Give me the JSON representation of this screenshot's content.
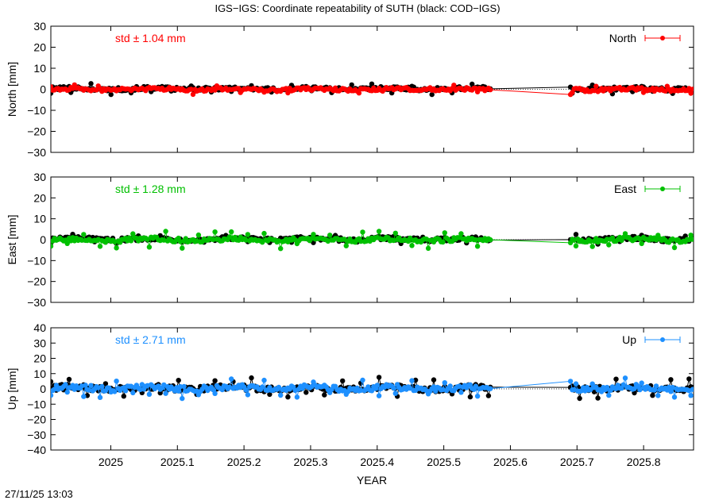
{
  "figure": {
    "title": "IGS−IGS: Coordinate repeatability of SUTH (black: COD−IGS)",
    "timestamp": "27/11/25 13:03",
    "xlabel": "YEAR"
  },
  "chart_data": [
    {
      "type": "scatter",
      "ylabel": "North [mm]",
      "ylim": [
        -30,
        30
      ],
      "yticks": [
        -30,
        -20,
        -10,
        0,
        10,
        20,
        30
      ],
      "ytick_labels": [
        "−30",
        "−20",
        "−10",
        "0",
        "10",
        "20",
        "30"
      ],
      "xlim": [
        2024.91,
        2025.875
      ],
      "xticks": [
        2025,
        2025.1,
        2025.2,
        2025.3,
        2025.4,
        2025.5,
        2025.6,
        2025.7,
        2025.8
      ],
      "xtick_labels": [
        "2025",
        "2025.1",
        "2025.2",
        "2025.3",
        "2025.4",
        "2025.5",
        "2025.6",
        "2025.7",
        "2025.8"
      ],
      "std_label": "std ± 1.04 mm",
      "legend": "North",
      "legend_position": "top-right",
      "color": "#ff0000",
      "gap": [
        2025.57,
        2025.69
      ],
      "black_series": {
        "y0": 0.3,
        "amp": 1.4,
        "spike_every": 11,
        "spike": 1.8
      },
      "color_series": {
        "y0": -0.1,
        "amp": 1.2,
        "spike_every": 13,
        "spike": 1.4,
        "gap_end_value": -2.5
      }
    },
    {
      "type": "scatter",
      "ylabel": "East [mm]",
      "ylim": [
        -30,
        30
      ],
      "yticks": [
        -30,
        -20,
        -10,
        0,
        10,
        20,
        30
      ],
      "ytick_labels": [
        "−30",
        "−20",
        "−10",
        "0",
        "10",
        "20",
        "30"
      ],
      "xlim": [
        2024.91,
        2025.875
      ],
      "xticks": [
        2025,
        2025.1,
        2025.2,
        2025.3,
        2025.4,
        2025.5,
        2025.6,
        2025.7,
        2025.8
      ],
      "xtick_labels": [
        "2025",
        "2025.1",
        "2025.2",
        "2025.3",
        "2025.4",
        "2025.5",
        "2025.6",
        "2025.7",
        "2025.8"
      ],
      "std_label": "std ± 1.28 mm",
      "legend": "East",
      "legend_position": "top-right",
      "color": "#00c000",
      "gap": [
        2025.57,
        2025.69
      ],
      "black_series": {
        "y0": 0.3,
        "amp": 1.5,
        "spike_every": 12,
        "spike": 1.6
      },
      "color_series": {
        "y0": 0.0,
        "amp": 1.6,
        "spike_every": 9,
        "spike": 3.0,
        "gap_end_value": -1.5
      }
    },
    {
      "type": "scatter",
      "ylabel": "Up [mm]",
      "ylim": [
        -40,
        40
      ],
      "yticks": [
        -40,
        -30,
        -20,
        -10,
        0,
        10,
        20,
        30,
        40
      ],
      "ytick_labels": [
        "−40",
        "−30",
        "−20",
        "−10",
        "0",
        "10",
        "20",
        "30",
        "40"
      ],
      "xlim": [
        2024.91,
        2025.875
      ],
      "xticks": [
        2025,
        2025.1,
        2025.2,
        2025.3,
        2025.4,
        2025.5,
        2025.6,
        2025.7,
        2025.8
      ],
      "xtick_labels": [
        "2025",
        "2025.1",
        "2025.2",
        "2025.3",
        "2025.4",
        "2025.5",
        "2025.6",
        "2025.7",
        "2025.8"
      ],
      "std_label": "std ± 2.71 mm",
      "legend": "Up",
      "legend_position": "top-right",
      "color": "#1e90ff",
      "gap": [
        2025.57,
        2025.69
      ],
      "black_series": {
        "y0": 0.5,
        "amp": 3.0,
        "spike_every": 10,
        "spike": 5.0
      },
      "color_series": {
        "y0": 0.5,
        "amp": 3.0,
        "spike_every": 9,
        "spike": 4.5,
        "gap_end_value": 5.0
      }
    }
  ]
}
